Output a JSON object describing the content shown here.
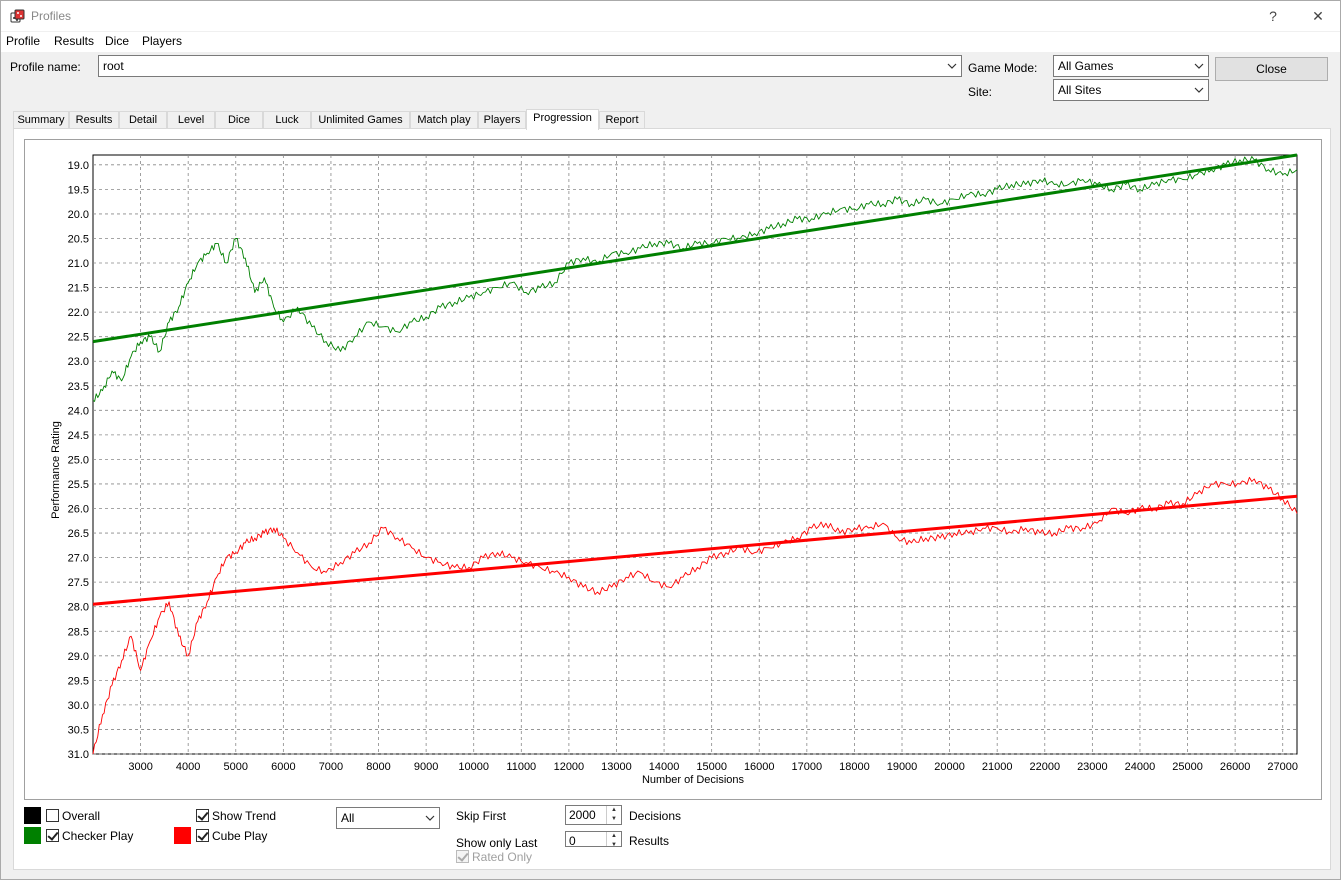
{
  "window": {
    "title": "Profiles",
    "help_label": "?",
    "close_label": "✕"
  },
  "menu": [
    "Profile",
    "Results",
    "Dice",
    "Players"
  ],
  "profile": {
    "label": "Profile name:",
    "value": "root"
  },
  "game_mode": {
    "label": "Game Mode:",
    "value": "All Games"
  },
  "site": {
    "label": "Site:",
    "value": "All Sites"
  },
  "close_button": "Close",
  "tabs": [
    "Summary",
    "Results",
    "Detail",
    "Level",
    "Dice",
    "Luck",
    "Unlimited Games",
    "Match play",
    "Players",
    "Progression",
    "Report"
  ],
  "active_tab": "Progression",
  "legend": {
    "overall": {
      "label": "Overall",
      "checked": false,
      "color": "#000000"
    },
    "checker": {
      "label": "Checker Play",
      "checked": true,
      "color": "#008000"
    },
    "cube": {
      "label": "Cube Play",
      "checked": true,
      "color": "#ff0000"
    },
    "show_trend": {
      "label": "Show Trend",
      "checked": true
    }
  },
  "filter_combo": "All",
  "skip_first": {
    "label": "Skip First",
    "value": "2000",
    "unit": "Decisions"
  },
  "show_only_last": {
    "label": "Show only Last",
    "value": "0",
    "unit": "Results"
  },
  "rated_only": {
    "label": "Rated Only",
    "checked": true
  },
  "chart_data": {
    "type": "line",
    "xlabel": "Number of Decisions",
    "ylabel": "Performance Rating",
    "xlim": [
      2000,
      27300
    ],
    "ylim": [
      31.0,
      18.8
    ],
    "y_inverted": true,
    "xticks": [
      3000,
      4000,
      5000,
      6000,
      7000,
      8000,
      9000,
      10000,
      11000,
      12000,
      13000,
      14000,
      15000,
      16000,
      17000,
      18000,
      19000,
      20000,
      21000,
      22000,
      23000,
      24000,
      25000,
      26000,
      27000
    ],
    "yticks": [
      "19.0",
      "19.5",
      "20.0",
      "20.5",
      "21.0",
      "21.5",
      "22.0",
      "22.5",
      "23.0",
      "23.5",
      "24.0",
      "24.5",
      "25.0",
      "25.5",
      "26.0",
      "26.5",
      "27.0",
      "27.5",
      "28.0",
      "28.5",
      "29.0",
      "29.5",
      "30.0",
      "30.5",
      "31.0"
    ],
    "grid": true,
    "series": [
      {
        "name": "Checker Play",
        "color": "#008000",
        "x": [
          2000,
          2200,
          2400,
          2600,
          2800,
          3000,
          3200,
          3400,
          3600,
          3800,
          4000,
          4200,
          4400,
          4600,
          4800,
          5000,
          5200,
          5400,
          5600,
          5800,
          6000,
          6300,
          6600,
          6900,
          7200,
          7500,
          7800,
          8100,
          8400,
          8700,
          9000,
          9300,
          9600,
          9900,
          10200,
          10500,
          10800,
          11100,
          11400,
          11700,
          12000,
          12300,
          12600,
          12900,
          13200,
          13500,
          13800,
          14100,
          14400,
          14700,
          15000,
          15300,
          15600,
          15900,
          16200,
          16500,
          16800,
          17100,
          17400,
          17700,
          18000,
          18300,
          18600,
          18900,
          19200,
          19500,
          19800,
          20100,
          20400,
          20700,
          21000,
          21300,
          21600,
          21900,
          22200,
          22500,
          22800,
          23100,
          23400,
          23700,
          24000,
          24300,
          24600,
          24900,
          25200,
          25500,
          25800,
          26100,
          26400,
          26700,
          27000,
          27300
        ],
        "values": [
          23.8,
          23.6,
          23.2,
          23.4,
          22.9,
          22.6,
          22.5,
          22.8,
          22.2,
          21.9,
          21.4,
          21.0,
          20.8,
          20.6,
          21.0,
          20.5,
          20.9,
          21.6,
          21.3,
          21.9,
          22.2,
          21.9,
          22.3,
          22.6,
          22.8,
          22.5,
          22.2,
          22.3,
          22.4,
          22.2,
          22.1,
          21.9,
          21.8,
          21.7,
          21.6,
          21.5,
          21.4,
          21.6,
          21.5,
          21.4,
          21.0,
          20.9,
          21.0,
          20.8,
          20.8,
          20.7,
          20.6,
          20.6,
          20.7,
          20.6,
          20.6,
          20.5,
          20.5,
          20.4,
          20.3,
          20.2,
          20.1,
          20.1,
          20.0,
          19.9,
          19.9,
          19.8,
          19.8,
          19.7,
          19.8,
          19.7,
          19.8,
          19.7,
          19.6,
          19.6,
          19.5,
          19.4,
          19.4,
          19.3,
          19.4,
          19.4,
          19.3,
          19.4,
          19.5,
          19.4,
          19.5,
          19.4,
          19.3,
          19.3,
          19.2,
          19.1,
          19.0,
          18.9,
          18.9,
          19.1,
          19.2,
          19.1
        ]
      },
      {
        "name": "Checker Play Trend",
        "color": "#008000",
        "x": [
          2000,
          27300
        ],
        "values": [
          22.6,
          18.8
        ]
      },
      {
        "name": "Cube Play",
        "color": "#ff0000",
        "x": [
          2000,
          2200,
          2400,
          2600,
          2800,
          3000,
          3200,
          3400,
          3600,
          3800,
          4000,
          4200,
          4400,
          4600,
          4800,
          5000,
          5200,
          5400,
          5600,
          5800,
          6000,
          6300,
          6600,
          6900,
          7200,
          7500,
          7800,
          8100,
          8400,
          8700,
          9000,
          9300,
          9600,
          9900,
          10200,
          10500,
          10800,
          11100,
          11400,
          11700,
          12000,
          12300,
          12600,
          12900,
          13200,
          13500,
          13800,
          14100,
          14400,
          14700,
          15000,
          15300,
          15600,
          15900,
          16200,
          16500,
          16800,
          17100,
          17400,
          17700,
          18000,
          18300,
          18600,
          18900,
          19200,
          19500,
          19800,
          20100,
          20400,
          20700,
          21000,
          21300,
          21600,
          21900,
          22200,
          22500,
          22800,
          23100,
          23400,
          23700,
          24000,
          24300,
          24600,
          24900,
          25200,
          25500,
          25800,
          26100,
          26400,
          26700,
          27000,
          27300
        ],
        "values": [
          31.0,
          30.2,
          29.6,
          29.1,
          28.6,
          29.3,
          28.7,
          28.2,
          27.9,
          28.6,
          29.0,
          28.3,
          27.9,
          27.4,
          27.0,
          26.9,
          26.7,
          26.6,
          26.5,
          26.4,
          26.6,
          26.9,
          27.2,
          27.3,
          27.1,
          26.9,
          26.7,
          26.4,
          26.6,
          26.8,
          27.0,
          27.1,
          27.2,
          27.2,
          27.0,
          26.9,
          27.0,
          27.1,
          27.2,
          27.3,
          27.4,
          27.6,
          27.7,
          27.6,
          27.4,
          27.3,
          27.5,
          27.6,
          27.4,
          27.2,
          27.0,
          26.9,
          26.8,
          26.9,
          26.8,
          26.7,
          26.6,
          26.4,
          26.3,
          26.5,
          26.4,
          26.4,
          26.3,
          26.6,
          26.7,
          26.6,
          26.6,
          26.5,
          26.5,
          26.4,
          26.4,
          26.5,
          26.4,
          26.5,
          26.5,
          26.4,
          26.4,
          26.3,
          26.0,
          26.1,
          26.0,
          26.0,
          25.9,
          25.9,
          25.7,
          25.5,
          25.5,
          25.5,
          25.4,
          25.6,
          25.8,
          26.1
        ]
      },
      {
        "name": "Cube Play Trend",
        "color": "#ff0000",
        "x": [
          2000,
          27300
        ],
        "values": [
          27.95,
          25.75
        ]
      }
    ]
  }
}
